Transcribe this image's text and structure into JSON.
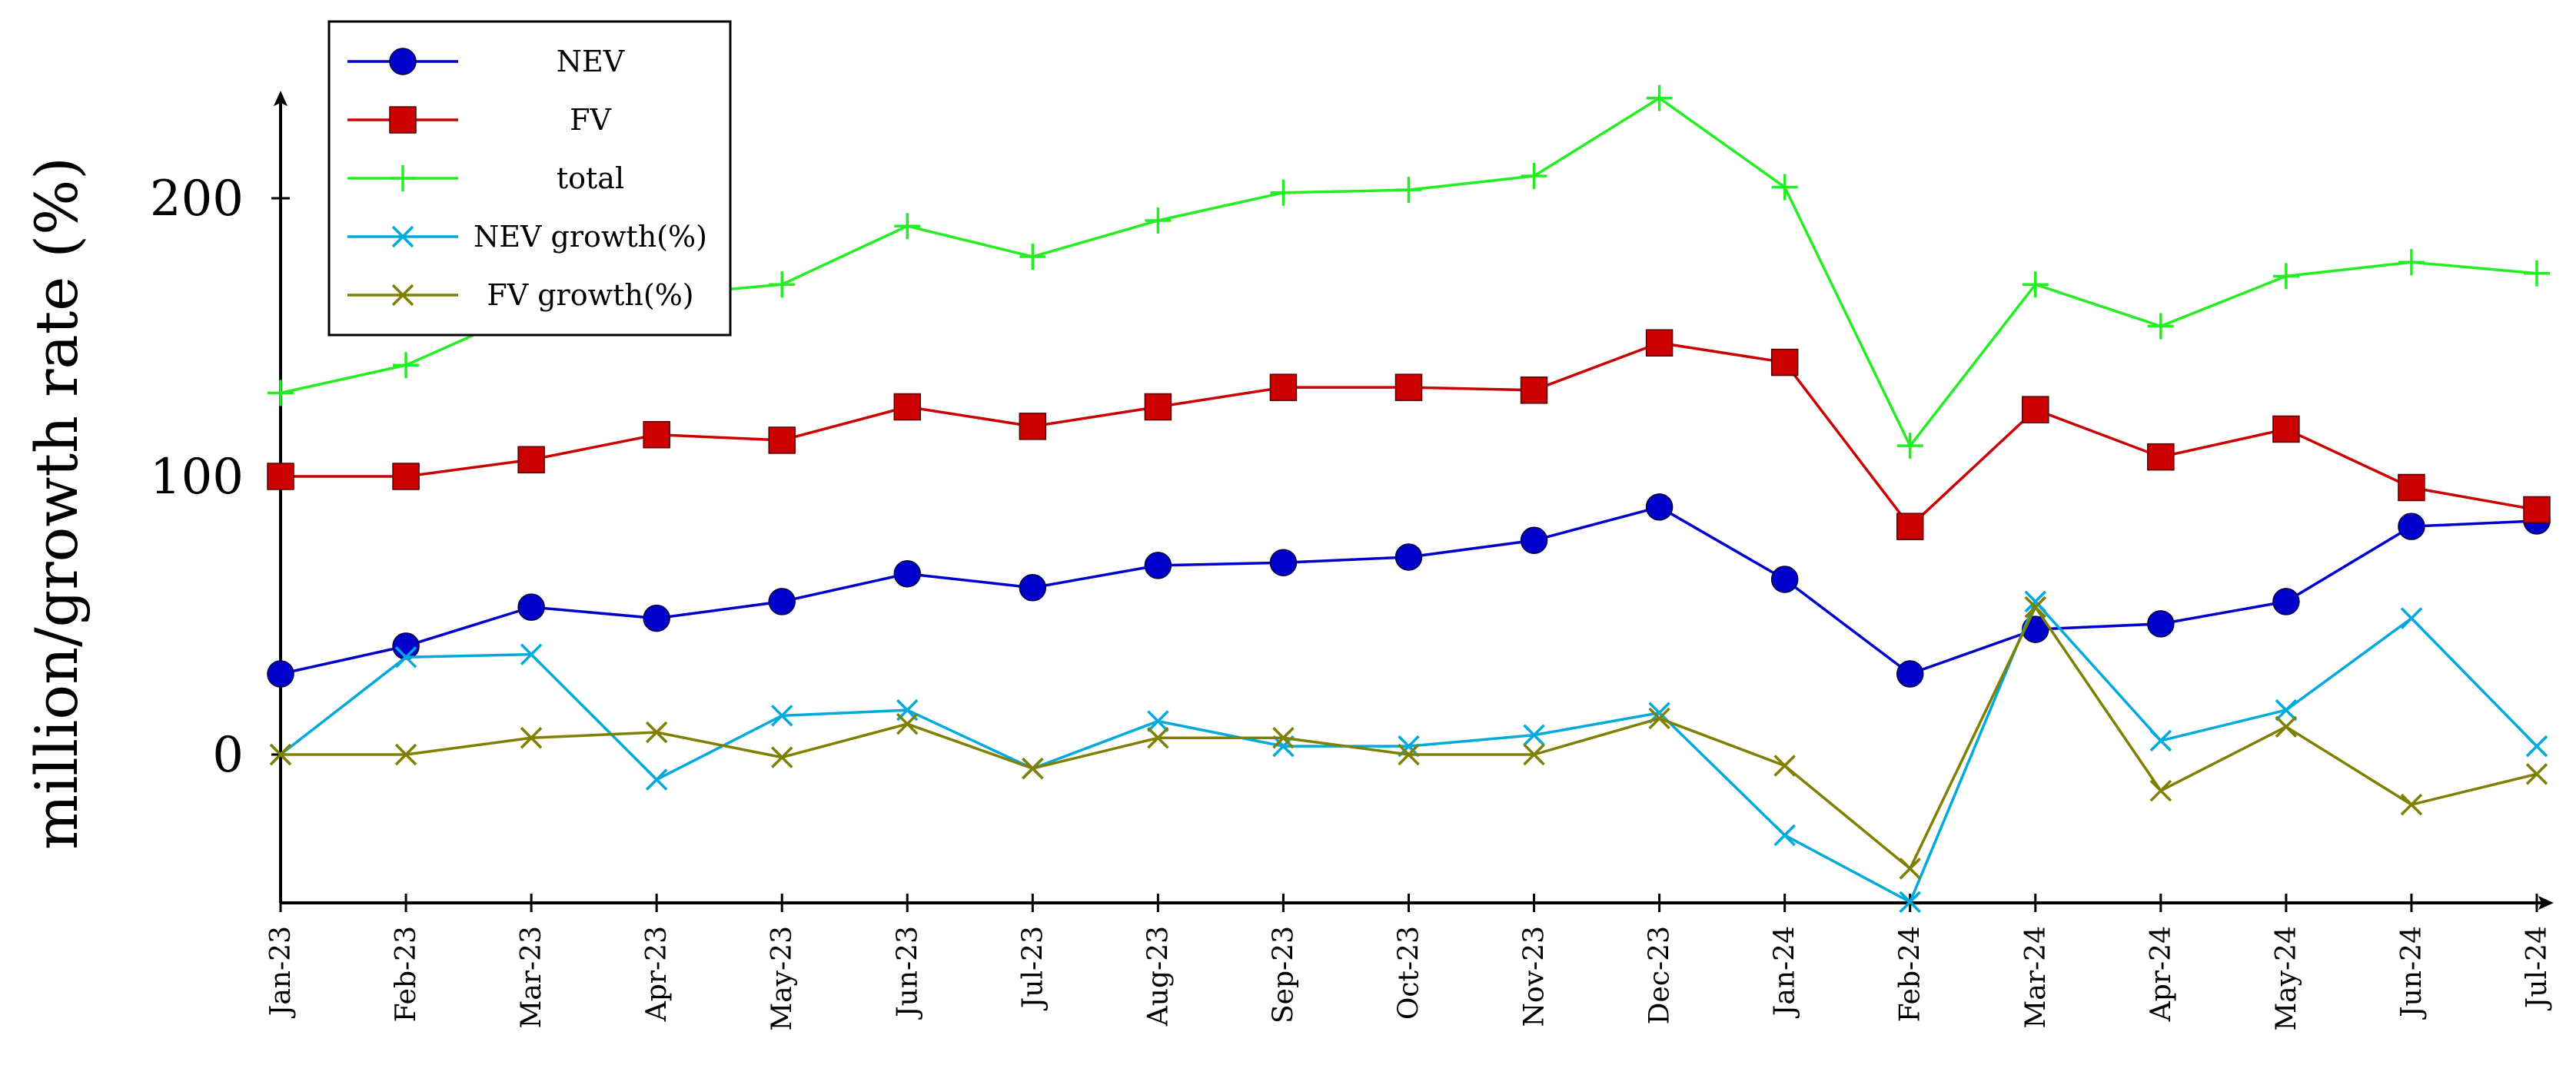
{
  "chart_data": {
    "type": "line",
    "title": "",
    "xlabel": "",
    "ylabel": "million/growth rate (%)",
    "ylim": [
      -53,
      235
    ],
    "yticks": [
      0,
      100,
      200
    ],
    "categories": [
      "Jan-23",
      "Feb-23",
      "Mar-23",
      "Apr-23",
      "May-23",
      "Jun-23",
      "Jul-23",
      "Aug-23",
      "Sep-23",
      "Oct-23",
      "Nov-23",
      "Dec-23",
      "Jan-24",
      "Feb-24",
      "Mar-24",
      "Apr-24",
      "May-24",
      "Jun-24",
      "Jul-24"
    ],
    "legend_position": "top-left",
    "grid": false,
    "series": [
      {
        "name": "NEV",
        "color": "#0000cc",
        "marker": "circle",
        "values": [
          29,
          39,
          53,
          49,
          55,
          65,
          60,
          68,
          69,
          71,
          77,
          89,
          63,
          29,
          45,
          47,
          55,
          82,
          84
        ]
      },
      {
        "name": "FV",
        "color": "#cc0000",
        "marker": "square",
        "values": [
          100,
          100,
          106,
          115,
          113,
          125,
          118,
          125,
          132,
          132,
          131,
          148,
          141,
          82,
          124,
          107,
          117,
          96,
          88
        ]
      },
      {
        "name": "total",
        "color": "#22ee22",
        "marker": "plus",
        "values": [
          130,
          140,
          160,
          165,
          169,
          190,
          179,
          192,
          202,
          203,
          208,
          236,
          204,
          111,
          169,
          154,
          172,
          177,
          173
        ]
      },
      {
        "name": "NEV growth(%)",
        "color": "#00aadd",
        "marker": "x",
        "values": [
          0,
          35,
          36,
          -9,
          14,
          16,
          -5,
          12,
          3,
          3,
          7,
          15,
          -29,
          -53,
          55,
          5,
          16,
          49,
          3
        ]
      },
      {
        "name": "FV growth(%)",
        "color": "#808000",
        "marker": "x",
        "values": [
          0,
          0,
          6,
          8,
          -1,
          11,
          -5,
          6,
          6,
          0,
          0,
          13,
          -4,
          -41,
          53,
          -13,
          10,
          -18,
          -7
        ]
      }
    ]
  }
}
